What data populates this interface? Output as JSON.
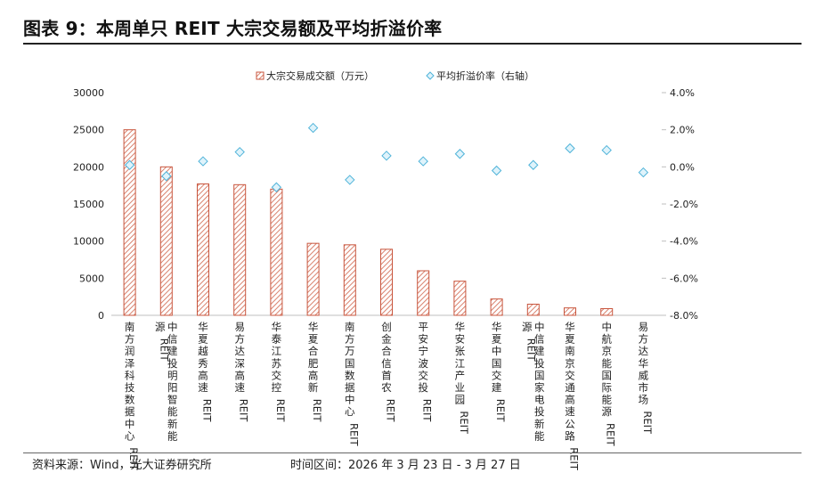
{
  "title": "图表 9：本周单只 REIT 大宗交易额及平均折溢价率",
  "source": "资料来源：Wind，光大证券研究所",
  "period": "时间区间：2026 年 3 月 23 日  - 3 月 27 日",
  "colors": {
    "bar_stroke": "#c8553d",
    "bar_hatch": "#d9826e",
    "marker_fill": "#dff3fb",
    "marker_stroke": "#4fb3d9"
  },
  "chart_data": {
    "type": "bar",
    "legend_position": "top-center",
    "grid": false,
    "categories": [
      "南方润泽科技数据中心REIT",
      "中信建投明阳智能新能源REIT",
      "华夏越秀高速REIT",
      "易方达深高速REIT",
      "华泰江苏交控REIT",
      "华夏合肥高新REIT",
      "南方万国数据中心REIT",
      "创金合信首农REIT",
      "平安宁波交投REIT",
      "华安张江产业园REIT",
      "华夏中国交建REIT",
      "中信建投国家电投新能源REIT",
      "华夏南京交通高速公路REIT",
      "中航京能国际能源REIT",
      "易方达华威市场REIT"
    ],
    "series": [
      {
        "name": "大宗交易成交额（万元）",
        "axis": "left",
        "type": "bar",
        "values": [
          25000,
          20000,
          17700,
          17600,
          17000,
          9700,
          9500,
          8900,
          6000,
          4600,
          2200,
          1500,
          1000,
          900,
          0
        ]
      },
      {
        "name": "平均折溢价率（右轴）",
        "axis": "right",
        "type": "scatter",
        "values": [
          0.1,
          -0.5,
          0.3,
          0.8,
          -1.1,
          2.1,
          -0.7,
          0.6,
          0.3,
          0.7,
          -0.2,
          0.1,
          1.0,
          0.9,
          -0.3
        ]
      }
    ],
    "y_left": {
      "ylim": [
        0,
        30000
      ],
      "ticks": [
        "0",
        "5000",
        "10000",
        "15000",
        "20000",
        "25000",
        "30000"
      ]
    },
    "y_right": {
      "ylim": [
        -8,
        4
      ],
      "ticks": [
        "-8.0%",
        "-6.0%",
        "-4.0%",
        "-2.0%",
        "0.0%",
        "2.0%",
        "4.0%"
      ]
    }
  }
}
